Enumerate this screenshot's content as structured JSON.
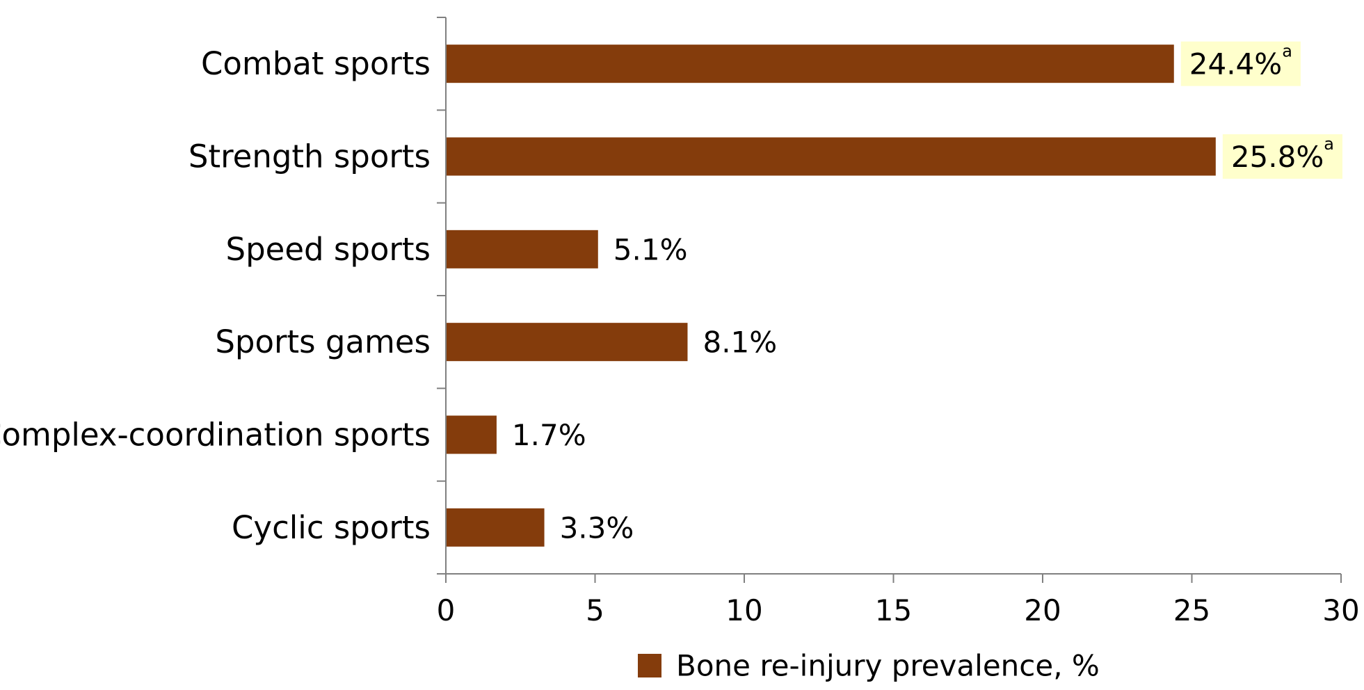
{
  "chart_data": {
    "type": "bar",
    "orientation": "horizontal",
    "categories": [
      "Combat sports",
      "Strength sports",
      "Speed sports",
      "Sports games",
      "Complex-coordination sports",
      "Cyclic sports"
    ],
    "series": [
      {
        "name": "Bone re-injury prevalence, %",
        "values": [
          24.4,
          25.8,
          5.1,
          8.1,
          1.7,
          3.3
        ],
        "color": "#843C0C"
      }
    ],
    "data_labels": [
      "24.4%",
      "25.8%",
      "5.1%",
      "8.1%",
      "1.7%",
      "3.3%"
    ],
    "label_superscripts": [
      "a",
      "a",
      "",
      "",
      "",
      ""
    ],
    "highlight_color": "#FFFFCC",
    "xlim": [
      0,
      30
    ],
    "xticks": [
      0,
      5,
      10,
      15,
      20,
      25,
      30
    ],
    "grid": false,
    "legend_position": "bottom"
  }
}
